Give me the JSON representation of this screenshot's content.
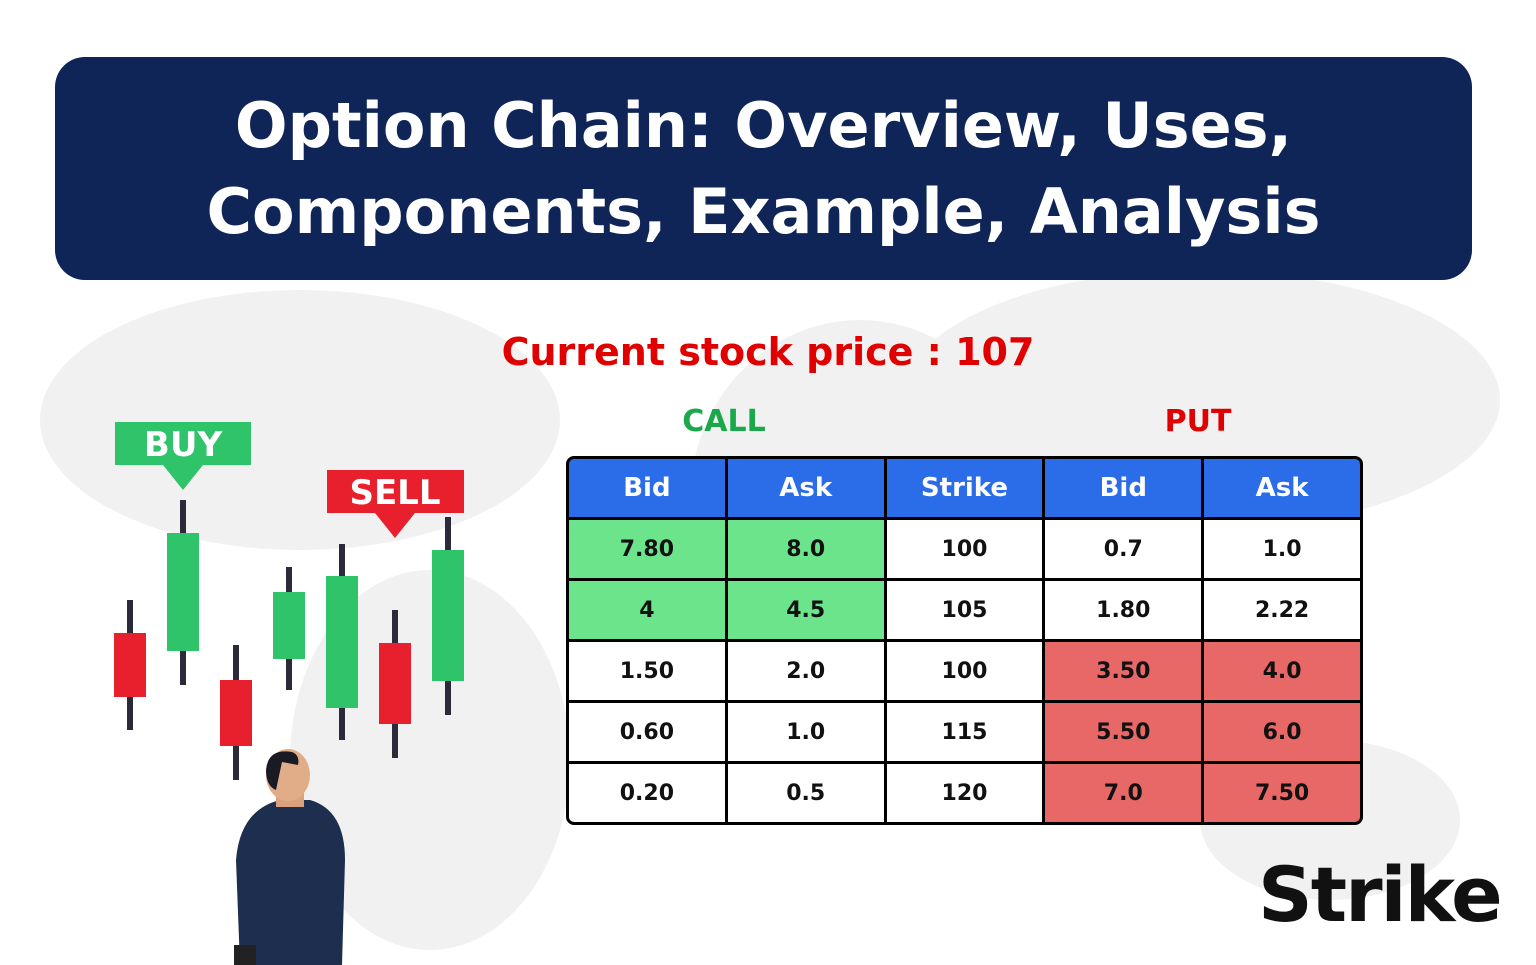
{
  "header": {
    "title_lines": [
      "Option Chain: Overview, Uses,",
      "Components, Example, Analysis"
    ]
  },
  "current_price": "Current stock price : 107",
  "groups": {
    "call": "CALL",
    "put": "PUT"
  },
  "signals": {
    "buy": "BUY",
    "sell": "SELL"
  },
  "table": {
    "headers": [
      "Bid",
      "Ask",
      "Strike",
      "Bid",
      "Ask"
    ],
    "rows": [
      [
        "7.80",
        "8.0",
        "100",
        "0.7",
        "1.0"
      ],
      [
        "4",
        "4.5",
        "105",
        "1.80",
        "2.22"
      ],
      [
        "1.50",
        "2.0",
        "100",
        "3.50",
        "4.0"
      ],
      [
        "0.60",
        "1.0",
        "115",
        "5.50",
        "6.0"
      ],
      [
        "0.20",
        "0.5",
        "120",
        "7.0",
        "7.50"
      ]
    ]
  },
  "brand": "Strike"
}
